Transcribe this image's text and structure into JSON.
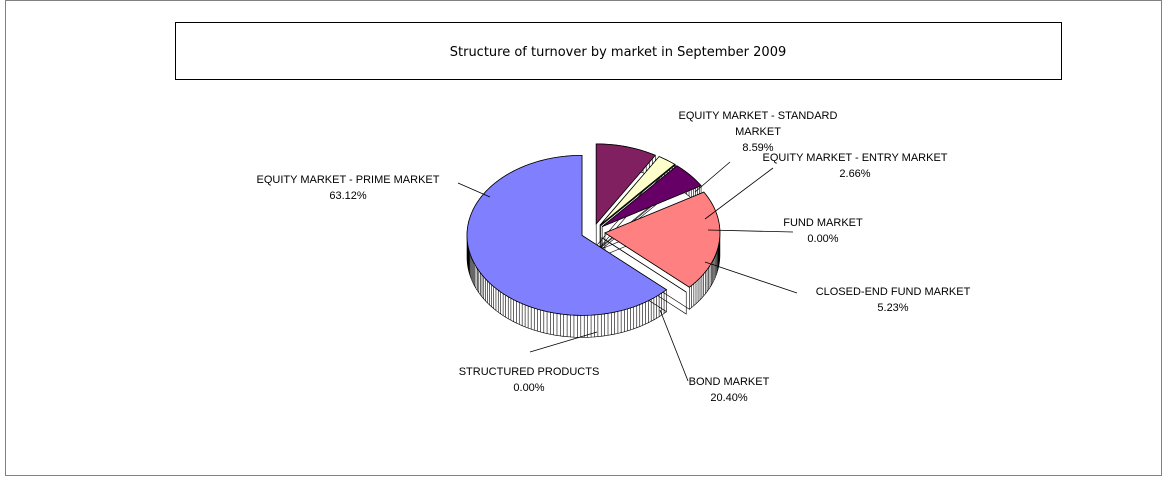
{
  "chart_data": {
    "type": "pie3d",
    "title": "Structure of turnover by market in September 2009",
    "categories": [
      "EQUITY MARKET - PRIME MARKET",
      "EQUITY MARKET - STANDARD MARKET",
      "EQUITY MARKET - ENTRY MARKET",
      "FUND MARKET",
      "CLOSED-END FUND MARKET",
      "BOND MARKET",
      "STRUCTURED PRODUCTS"
    ],
    "values": [
      63.12,
      8.59,
      2.66,
      0.0,
      5.23,
      20.4,
      0.0
    ],
    "value_labels": [
      "63.12%",
      "8.59%",
      "2.66%",
      "0.00%",
      "5.23%",
      "20.40%",
      "0.00%"
    ],
    "colors": [
      "#8080ff",
      "#802060",
      "#ffffcc",
      "#ccffff",
      "#660066",
      "#ff8080",
      "#0066cc"
    ]
  }
}
